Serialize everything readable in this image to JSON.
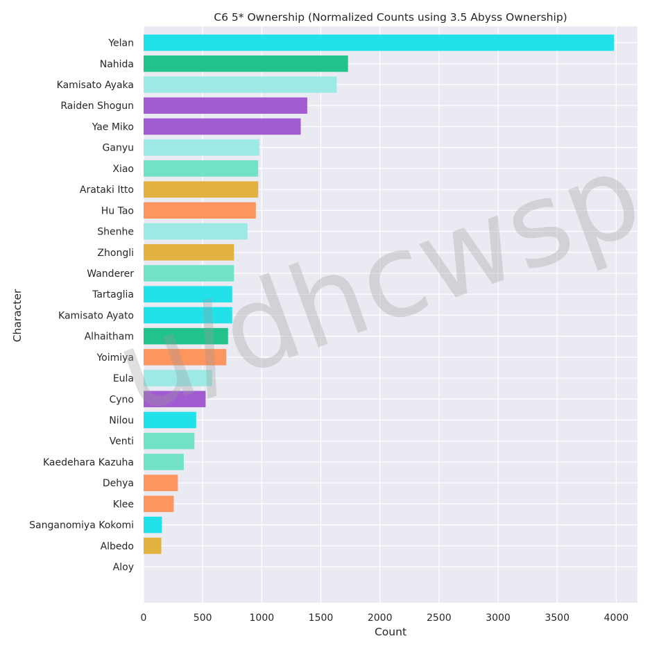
{
  "chart_data": {
    "type": "bar",
    "orientation": "horizontal",
    "title": "C6 5* Ownership (Normalized Counts using 3.5 Abyss Ownership)",
    "xlabel": "Count",
    "ylabel": "Character",
    "xlim": [
      0,
      4180
    ],
    "xticks": [
      0,
      500,
      1000,
      1500,
      2000,
      2500,
      3000,
      3500,
      4000
    ],
    "grid": true,
    "watermark": "u/dhcwsp",
    "categories": [
      "Yelan",
      "Nahida",
      "Kamisato Ayaka",
      "Raiden Shogun",
      "Yae Miko",
      "Ganyu",
      "Xiao",
      "Arataki Itto",
      "Hu Tao",
      "Shenhe",
      "Zhongli",
      "Wanderer",
      "Tartaglia",
      "Kamisato Ayato",
      "Alhaitham",
      "Yoimiya",
      "Eula",
      "Cyno",
      "Nilou",
      "Venti",
      "Kaedehara Kazuha",
      "Dehya",
      "Klee",
      "Sanganomiya Kokomi",
      "Albedo",
      "Aloy"
    ],
    "values": [
      3980,
      1730,
      1635,
      1385,
      1330,
      980,
      970,
      970,
      950,
      880,
      765,
      765,
      750,
      750,
      715,
      700,
      580,
      525,
      445,
      430,
      340,
      290,
      255,
      155,
      150,
      0
    ],
    "colors": [
      "#22e1e9",
      "#21c38a",
      "#9de9e6",
      "#a25cd1",
      "#a25cd1",
      "#9de9e6",
      "#72e2c4",
      "#e2b240",
      "#fe945e",
      "#9de9e6",
      "#e2b240",
      "#72e2c4",
      "#22e1e9",
      "#22e1e9",
      "#21c38a",
      "#fe945e",
      "#9de9e6",
      "#a25cd1",
      "#22e1e9",
      "#72e2c4",
      "#72e2c4",
      "#fe945e",
      "#fe945e",
      "#22e1e9",
      "#e2b240",
      "#22e1e9"
    ]
  }
}
